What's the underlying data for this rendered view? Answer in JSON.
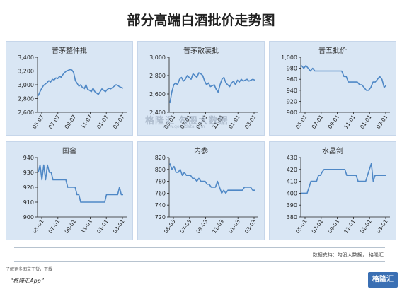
{
  "title": "部分高端白酒批价走势图",
  "source": "数据支持：勾股大数据，  格隆汇",
  "note": "了解更多图文干货，下载",
  "app_label": "“格隆汇App”",
  "brand": "格隆汇",
  "watermark": "格隆汇  勾股大数据",
  "watermark_sub": "www.gogudata.com",
  "colors": {
    "line": "#4f88c6",
    "panel": "#d9e6f4",
    "axis": "#222222"
  },
  "chart_data": [
    {
      "type": "line",
      "title": "普茅整件批",
      "ylim": [
        2600,
        3400
      ],
      "yticks": [
        2600,
        2800,
        3000,
        3200,
        3400
      ],
      "ytick_labels": [
        "2,600",
        "2,800",
        "3,000",
        "3,200",
        "3,400"
      ],
      "xtick_labels": [
        "05-07",
        "07-07",
        "09-07",
        "11-07",
        "01-07",
        "03-07"
      ],
      "series": [
        {
          "values": [
            2840,
            2900,
            2950,
            2990,
            3010,
            3030,
            3060,
            3040,
            3080,
            3070,
            3100,
            3090,
            3120,
            3110,
            3150,
            3180,
            3200,
            3210,
            3220,
            3215,
            3180,
            3060,
            3020,
            2980,
            3000,
            2960,
            2940,
            3000,
            2930,
            2920,
            2900,
            2950,
            2900,
            2880,
            2860,
            2900,
            2940,
            2920,
            2900,
            2930,
            2950,
            2940,
            2960,
            2980,
            3000,
            2990,
            2970,
            2960,
            2950
          ]
        }
      ]
    },
    {
      "type": "line",
      "title": "普茅散装批",
      "ylim": [
        2400,
        3000
      ],
      "yticks": [
        2400,
        2600,
        2800,
        3000
      ],
      "ytick_labels": [
        "2,400",
        "2,600",
        "2,800",
        "3,000"
      ],
      "xtick_labels": [
        "05-01",
        "07-01",
        "09-01",
        "11-01",
        "01-01",
        "03-01"
      ],
      "series": [
        {
          "values": [
            2500,
            2620,
            2700,
            2720,
            2700,
            2760,
            2780,
            2740,
            2760,
            2800,
            2780,
            2760,
            2820,
            2800,
            2780,
            2830,
            2820,
            2800,
            2740,
            2700,
            2720,
            2680,
            2690,
            2700,
            2650,
            2620,
            2700,
            2760,
            2780,
            2720,
            2700,
            2680,
            2720,
            2740,
            2700,
            2750,
            2730,
            2760,
            2740,
            2750,
            2760,
            2740,
            2750,
            2760,
            2750
          ]
        }
      ]
    },
    {
      "type": "line",
      "title": "普五批价",
      "ylim": [
        900,
        1000
      ],
      "yticks": [
        900,
        920,
        940,
        960,
        980,
        1000
      ],
      "ytick_labels": [
        "900",
        "920",
        "940",
        "960",
        "980",
        "1,000"
      ],
      "xtick_labels": [
        "05-01",
        "07-01",
        "09-01",
        "11-01",
        "01-01",
        "03-01"
      ],
      "series": [
        {
          "values": [
            985,
            980,
            985,
            980,
            975,
            980,
            975,
            975,
            975,
            975,
            975,
            975,
            975,
            975,
            975,
            975,
            975,
            975,
            975,
            965,
            965,
            955,
            955,
            955,
            955,
            955,
            950,
            950,
            945,
            940,
            940,
            945,
            955,
            955,
            960,
            965,
            960,
            945,
            950
          ]
        }
      ]
    },
    {
      "type": "line",
      "title": "国窖",
      "ylim": [
        900,
        940
      ],
      "yticks": [
        900,
        910,
        920,
        930,
        940
      ],
      "ytick_labels": [
        "900",
        "910",
        "920",
        "930",
        "940"
      ],
      "xtick_labels": [
        "05-01",
        "07-01",
        "09-01",
        "11-01",
        "01-01",
        "03-01"
      ],
      "series": [
        {
          "values": [
            930,
            935,
            925,
            935,
            925,
            935,
            930,
            930,
            925,
            925,
            925,
            925,
            925,
            925,
            925,
            925,
            920,
            920,
            920,
            920,
            920,
            915,
            915,
            910,
            910,
            910,
            910,
            910,
            910,
            910,
            910,
            910,
            910,
            910,
            910,
            910,
            910,
            915,
            915,
            915,
            915,
            915,
            915,
            915,
            920,
            915,
            915
          ]
        }
      ]
    },
    {
      "type": "line",
      "title": "内参",
      "ylim": [
        720,
        820
      ],
      "yticks": [
        720,
        740,
        760,
        780,
        800,
        820
      ],
      "ytick_labels": [
        "720",
        "740",
        "760",
        "780",
        "800",
        "820"
      ],
      "xtick_labels": [
        "05-03",
        "07-03",
        "09-03",
        "11-03",
        "01-03",
        "03-03"
      ],
      "series": [
        {
          "values": [
            810,
            800,
            805,
            795,
            795,
            800,
            790,
            795,
            790,
            790,
            790,
            785,
            785,
            780,
            785,
            780,
            780,
            780,
            775,
            775,
            770,
            770,
            770,
            780,
            770,
            760,
            765,
            760,
            765,
            765,
            765,
            765,
            765,
            765,
            765,
            765,
            770,
            770,
            770,
            770,
            765,
            765
          ]
        }
      ]
    },
    {
      "type": "line",
      "title": "水晶剑",
      "ylim": [
        380,
        430
      ],
      "yticks": [
        380,
        390,
        400,
        410,
        420,
        430
      ],
      "ytick_labels": [
        "380",
        "390",
        "400",
        "410",
        "420",
        "430"
      ],
      "xtick_labels": [
        "05-01",
        "07-01",
        "09-01",
        "11-01",
        "01-01",
        "03-01"
      ],
      "series": [
        {
          "values": [
            400,
            400,
            400,
            400,
            405,
            410,
            410,
            410,
            410,
            415,
            415,
            418,
            420,
            420,
            420,
            420,
            420,
            420,
            420,
            420,
            420,
            420,
            420,
            420,
            415,
            415,
            415,
            415,
            415,
            415,
            410,
            410,
            410,
            410,
            410,
            415,
            420,
            425,
            410,
            415,
            415,
            415,
            415,
            415,
            415,
            415
          ]
        }
      ]
    }
  ]
}
